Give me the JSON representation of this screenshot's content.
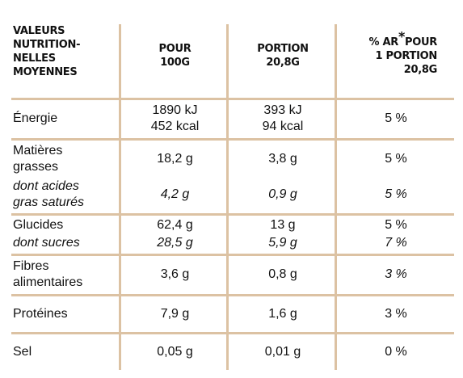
{
  "header": [
    [
      "VALEURS",
      "NUTRITION-",
      "NELLES",
      "MOYENNES"
    ],
    [
      "POUR",
      "100G"
    ],
    [
      "PORTION",
      "20,8G"
    ],
    [
      "% AR",
      "*",
      "POUR",
      "1 PORTION",
      "20,8G"
    ]
  ],
  "rows": [
    [
      [
        "Énergie",
        [
          "1890 kJ",
          "452 kcal"
        ],
        [
          "393 kJ",
          "94 kcal"
        ],
        "5 %"
      ]
    ],
    [
      [
        [
          "Matières",
          "grasses"
        ],
        "18,2 g",
        "3,8 g",
        "5 %"
      ],
      [
        [
          "dont acides",
          "gras saturés"
        ],
        "4,2 g",
        "0,9 g",
        "5 %"
      ]
    ],
    [
      [
        "Glucides",
        "62,4 g",
        "13 g",
        "5 %"
      ],
      [
        "dont sucres",
        "28,5 g",
        "5,9 g",
        "7 %"
      ]
    ],
    [
      [
        [
          "Fibres",
          "alimentaires"
        ],
        "3,6 g",
        "0,8 g",
        "3 %"
      ]
    ],
    [
      [
        "Protéines",
        "7,9 g",
        "1,6 g",
        "3 %"
      ]
    ],
    [
      [
        "Sel",
        "0,05 g",
        "0,01 g",
        "0 %"
      ]
    ]
  ]
}
